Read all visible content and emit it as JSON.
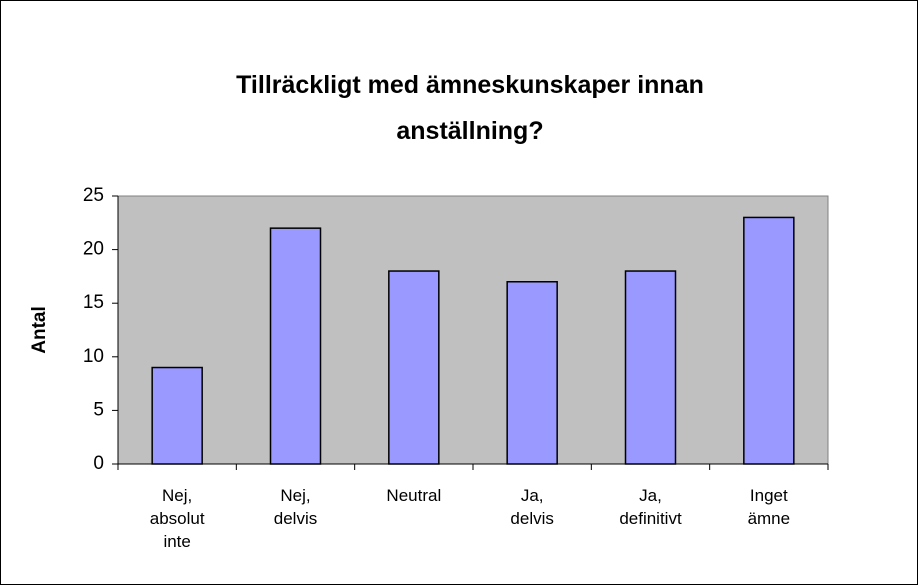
{
  "chart_data": {
    "type": "bar",
    "title": "Tillräckligt med ämneskunskaper innan anställning?",
    "y_label": "Antal",
    "categories": [
      "Nej, absolut inte",
      "Nej, delvis",
      "Neutral",
      "Ja, delvis",
      "Ja, definitivt",
      "Inget ämne"
    ],
    "values": [
      9,
      22,
      18,
      17,
      18,
      23
    ],
    "color": "#9999ff",
    "ylim": [
      0,
      25
    ],
    "yticks": [
      0,
      5,
      10,
      15,
      20,
      25
    ],
    "grid": false
  }
}
